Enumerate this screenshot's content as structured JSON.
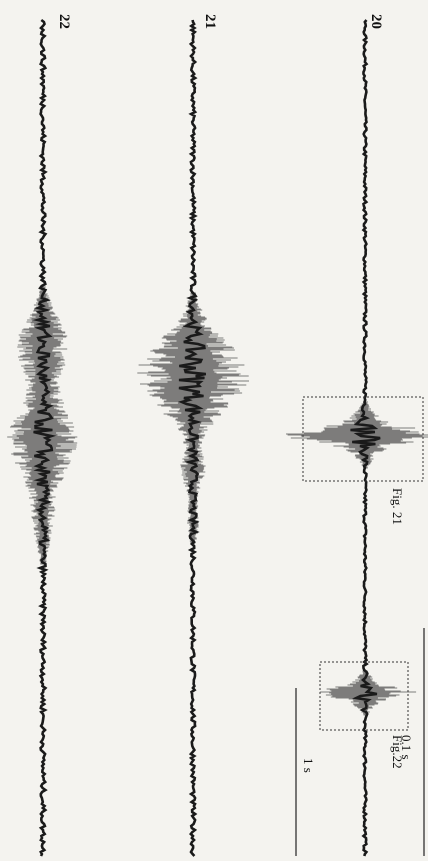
{
  "figure": {
    "traces": [
      {
        "label": "20"
      },
      {
        "label": "21"
      },
      {
        "label": "22"
      }
    ],
    "box_labels": [
      "Fig. 21",
      "Fig.22"
    ],
    "scale_bars": [
      {
        "label": "1 s"
      },
      {
        "label": "0.1 s"
      }
    ]
  }
}
